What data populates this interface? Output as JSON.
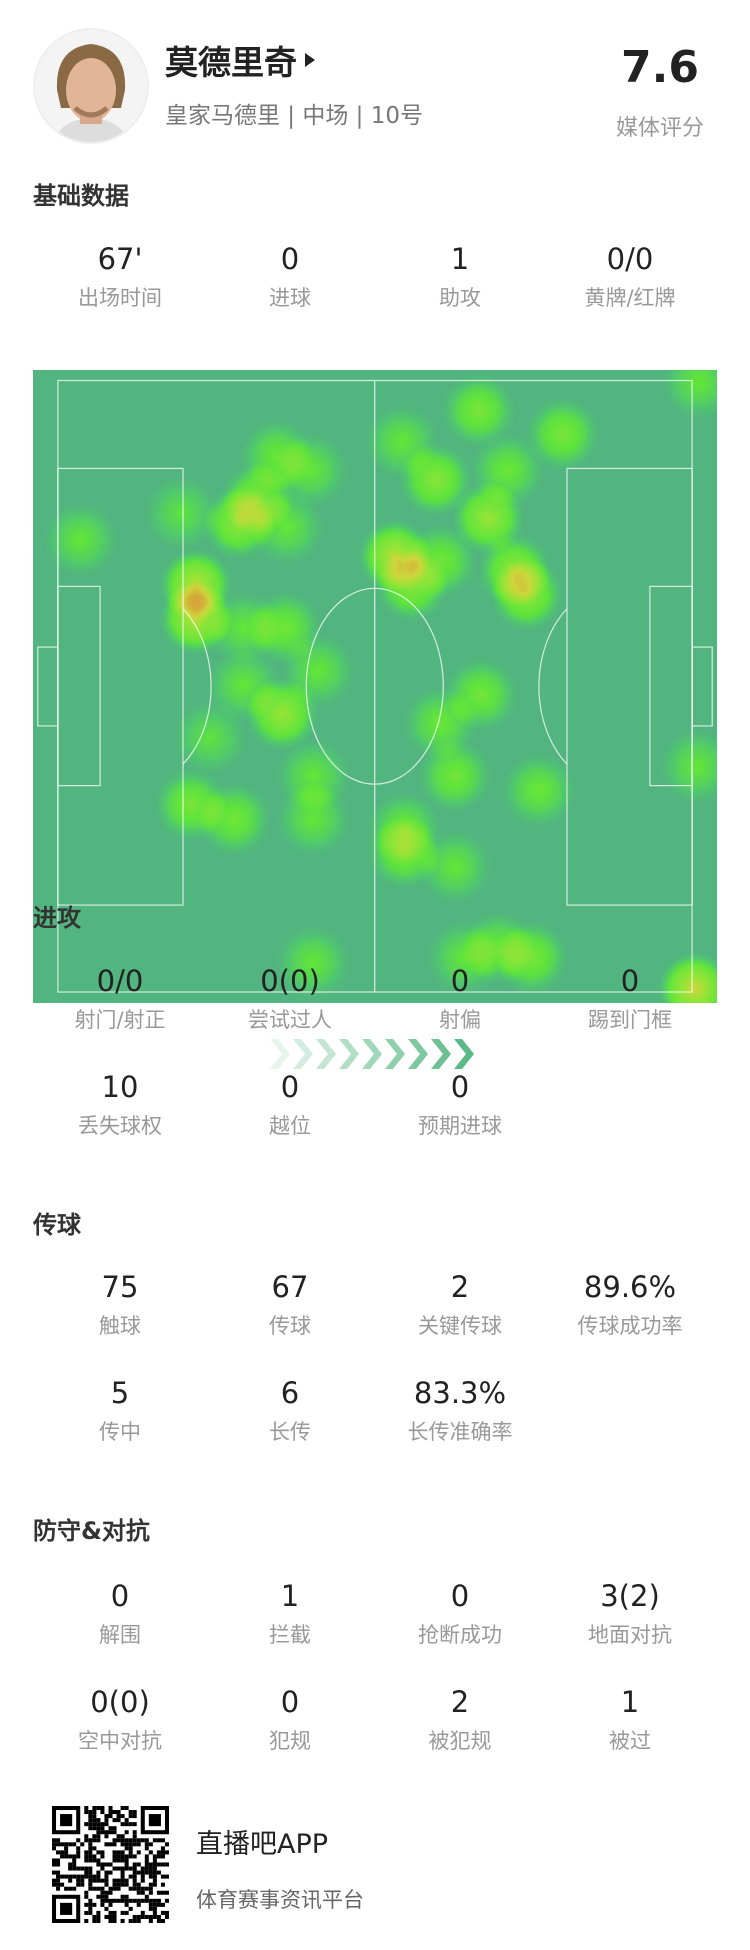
{
  "player": {
    "name": "莫德里奇",
    "subtitle": "皇家马德里 | 中场 | 10号",
    "rating": "7.6",
    "rating_label": "媒体评分"
  },
  "basic": {
    "title": "基础数据",
    "stats": [
      {
        "value": "67'",
        "label": "出场时间"
      },
      {
        "value": "0",
        "label": "进球"
      },
      {
        "value": "1",
        "label": "助攻"
      },
      {
        "value": "0/0",
        "label": "黄牌/红牌"
      }
    ]
  },
  "heatmap": {
    "pitch_color": "#52b57f",
    "direction": "attack-right"
  },
  "attack": {
    "title": "进攻",
    "stats": [
      {
        "value": "0/0",
        "label": "射门/射正"
      },
      {
        "value": "0(0)",
        "label": "尝试过人"
      },
      {
        "value": "0",
        "label": "射偏"
      },
      {
        "value": "0",
        "label": "踢到门框"
      },
      {
        "value": "10",
        "label": "丢失球权"
      },
      {
        "value": "0",
        "label": "越位"
      },
      {
        "value": "0",
        "label": "预期进球"
      }
    ]
  },
  "passing": {
    "title": "传球",
    "stats": [
      {
        "value": "75",
        "label": "触球"
      },
      {
        "value": "67",
        "label": "传球"
      },
      {
        "value": "2",
        "label": "关键传球"
      },
      {
        "value": "89.6%",
        "label": "传球成功率"
      },
      {
        "value": "5",
        "label": "传中"
      },
      {
        "value": "6",
        "label": "长传"
      },
      {
        "value": "83.3%",
        "label": "长传准确率"
      }
    ]
  },
  "defense": {
    "title": "防守&对抗",
    "stats": [
      {
        "value": "0",
        "label": "解围"
      },
      {
        "value": "1",
        "label": "拦截"
      },
      {
        "value": "0",
        "label": "抢断成功"
      },
      {
        "value": "3(2)",
        "label": "地面对抗"
      },
      {
        "value": "0(0)",
        "label": "空中对抗"
      },
      {
        "value": "0",
        "label": "犯规"
      },
      {
        "value": "2",
        "label": "被犯规"
      },
      {
        "value": "1",
        "label": "被过"
      }
    ]
  },
  "footer": {
    "app_name": "直播吧APP",
    "slogan": "体育赛事资讯平台"
  }
}
